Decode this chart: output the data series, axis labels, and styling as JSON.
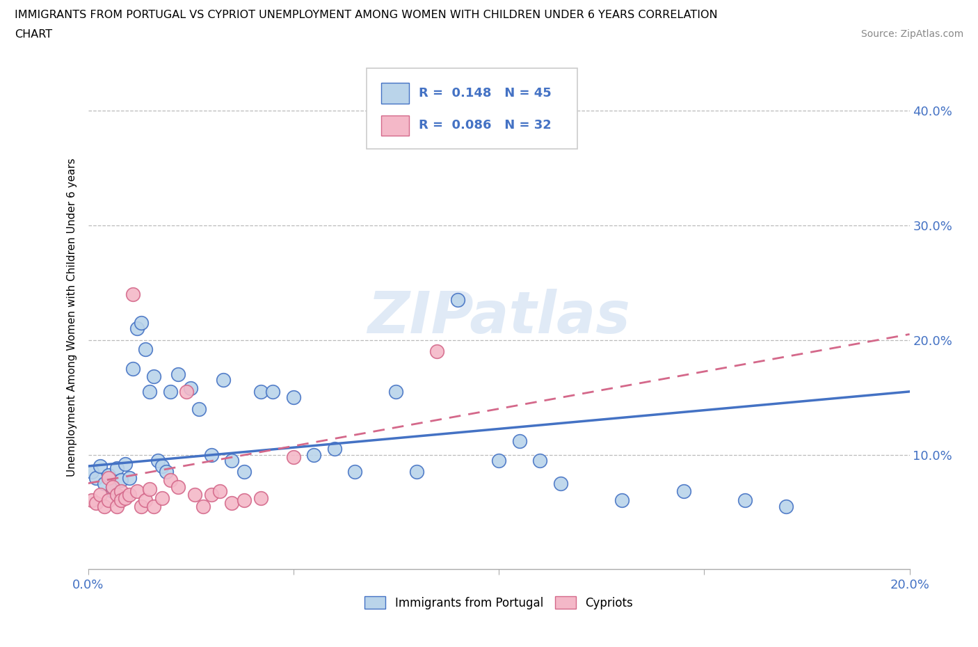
{
  "title_line1": "IMMIGRANTS FROM PORTUGAL VS CYPRIOT UNEMPLOYMENT AMONG WOMEN WITH CHILDREN UNDER 6 YEARS CORRELATION",
  "title_line2": "CHART",
  "source": "Source: ZipAtlas.com",
  "ylabel": "Unemployment Among Women with Children Under 6 years",
  "xlim": [
    0.0,
    0.2
  ],
  "ylim": [
    0.0,
    0.44
  ],
  "blue_R": "0.148",
  "blue_N": "45",
  "pink_R": "0.086",
  "pink_N": "32",
  "blue_fill": "#bad4ea",
  "blue_edge": "#4472c4",
  "pink_fill": "#f4b8c8",
  "pink_edge": "#d4688a",
  "blue_line_color": "#4472c4",
  "pink_line_color": "#d4688a",
  "legend_label_blue": "Immigrants from Portugal",
  "legend_label_pink": "Cypriots",
  "watermark_text": "ZIPatlas",
  "blue_x": [
    0.001,
    0.002,
    0.003,
    0.004,
    0.005,
    0.006,
    0.006,
    0.007,
    0.008,
    0.009,
    0.01,
    0.011,
    0.012,
    0.013,
    0.014,
    0.015,
    0.016,
    0.017,
    0.018,
    0.019,
    0.02,
    0.022,
    0.025,
    0.027,
    0.03,
    0.033,
    0.035,
    0.038,
    0.042,
    0.045,
    0.05,
    0.055,
    0.06,
    0.065,
    0.075,
    0.08,
    0.09,
    0.1,
    0.105,
    0.11,
    0.115,
    0.13,
    0.145,
    0.16,
    0.17
  ],
  "blue_y": [
    0.085,
    0.08,
    0.09,
    0.075,
    0.082,
    0.068,
    0.072,
    0.088,
    0.078,
    0.092,
    0.08,
    0.175,
    0.21,
    0.215,
    0.192,
    0.155,
    0.168,
    0.095,
    0.09,
    0.085,
    0.155,
    0.17,
    0.158,
    0.14,
    0.1,
    0.165,
    0.095,
    0.085,
    0.155,
    0.155,
    0.15,
    0.1,
    0.105,
    0.085,
    0.155,
    0.085,
    0.235,
    0.095,
    0.112,
    0.095,
    0.075,
    0.06,
    0.068,
    0.06,
    0.055
  ],
  "pink_x": [
    0.001,
    0.002,
    0.003,
    0.004,
    0.005,
    0.005,
    0.006,
    0.007,
    0.007,
    0.008,
    0.008,
    0.009,
    0.01,
    0.011,
    0.012,
    0.013,
    0.014,
    0.015,
    0.016,
    0.018,
    0.02,
    0.022,
    0.024,
    0.026,
    0.028,
    0.03,
    0.032,
    0.035,
    0.038,
    0.042,
    0.05,
    0.085
  ],
  "pink_y": [
    0.06,
    0.058,
    0.065,
    0.055,
    0.08,
    0.06,
    0.072,
    0.065,
    0.055,
    0.068,
    0.06,
    0.062,
    0.065,
    0.24,
    0.068,
    0.055,
    0.06,
    0.07,
    0.055,
    0.062,
    0.078,
    0.072,
    0.155,
    0.065,
    0.055,
    0.065,
    0.068,
    0.058,
    0.06,
    0.062,
    0.098,
    0.19
  ],
  "blue_trend_x": [
    0.0,
    0.2
  ],
  "blue_trend_y0": 0.09,
  "blue_trend_y1": 0.155,
  "pink_trend_x": [
    0.0,
    0.2
  ],
  "pink_trend_y0": 0.075,
  "pink_trend_y1": 0.205
}
